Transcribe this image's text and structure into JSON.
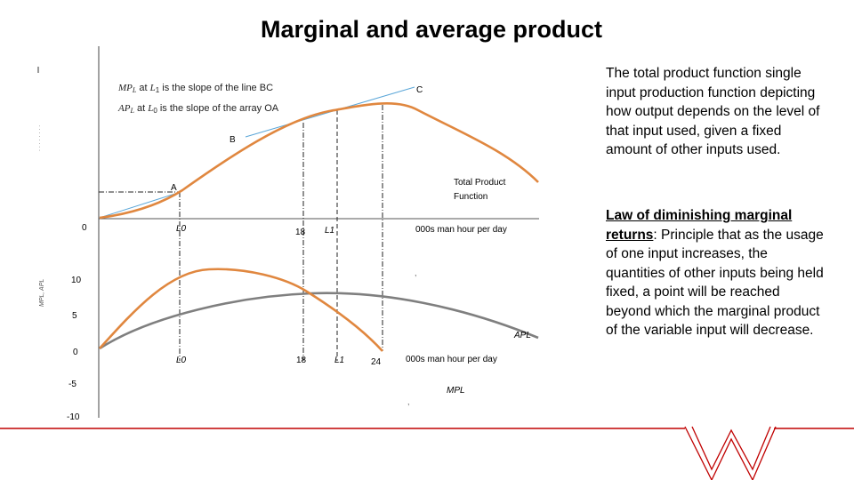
{
  "title": "Marginal and average product",
  "top_panel": {
    "note_mp": "MPL at L1 is the slope of the line BC",
    "note_ap": "APL at L0 is the slope of the array OA",
    "point_a": "A",
    "point_b": "B",
    "point_c": "C",
    "origin": "0",
    "curve_label_line1": "Total Product",
    "curve_label_line2": "Function",
    "tick_l0": "L0",
    "tick_18": "18",
    "tick_l1": "L1",
    "x_axis_label": "000s man hour per day"
  },
  "bottom_panel": {
    "y_ticks": [
      "10",
      "5",
      "0",
      "-5",
      "-10"
    ],
    "tick_l0": "L0",
    "tick_18": "18",
    "tick_l1": "L1",
    "tick_24": "24",
    "x_axis_label": "000s man hour per day",
    "ap_label": "APL",
    "mp_label": "MPL",
    "y_axis_label": "MPL, APL"
  },
  "side_text": {
    "paragraph1": "The total product function single input production function depicting how output depends on the level of that input used, given a fixed amount of other inputs used.",
    "law_heading_part1": "Law of diminishing marginal",
    "law_heading_part2": "returns",
    "law_body": ": Principle that as the usage of one input increases, the quantities of other inputs being held fixed, a point will be reached beyond which the marginal product of the variable input will decrease."
  },
  "colors": {
    "orange": "#e0873f",
    "gray": "#7f7f7f",
    "blue": "#5aa6d8",
    "red": "#c00000"
  }
}
